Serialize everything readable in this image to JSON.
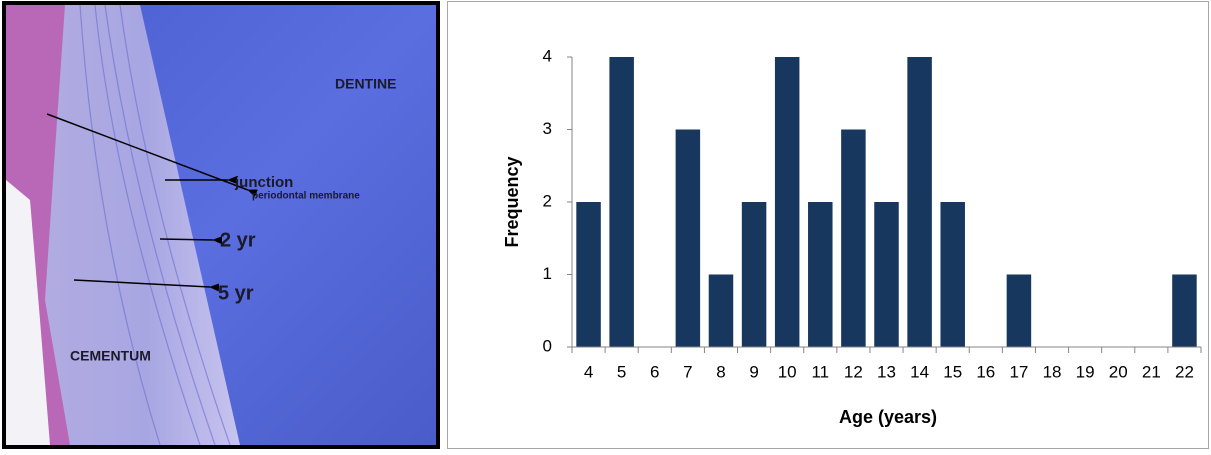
{
  "image": {
    "labels": [
      "DENTINE",
      "periodontal membrane",
      "junction",
      "2 yr",
      "5 yr",
      "CEMENTUM"
    ]
  },
  "chart_data": {
    "type": "bar",
    "x_label": "Age (years)",
    "y_label": "Frequency",
    "categories": [
      "4",
      "5",
      "6",
      "7",
      "8",
      "9",
      "10",
      "11",
      "12",
      "13",
      "14",
      "15",
      "16",
      "17",
      "18",
      "19",
      "20",
      "21",
      "22"
    ],
    "values": [
      2,
      4,
      0,
      3,
      1,
      2,
      4,
      2,
      3,
      2,
      4,
      2,
      0,
      1,
      0,
      0,
      0,
      0,
      1
    ],
    "color": "#17375e",
    "ylim": [
      0,
      4
    ],
    "yticks": [
      0,
      1,
      2,
      3,
      4
    ],
    "grid": false
  }
}
